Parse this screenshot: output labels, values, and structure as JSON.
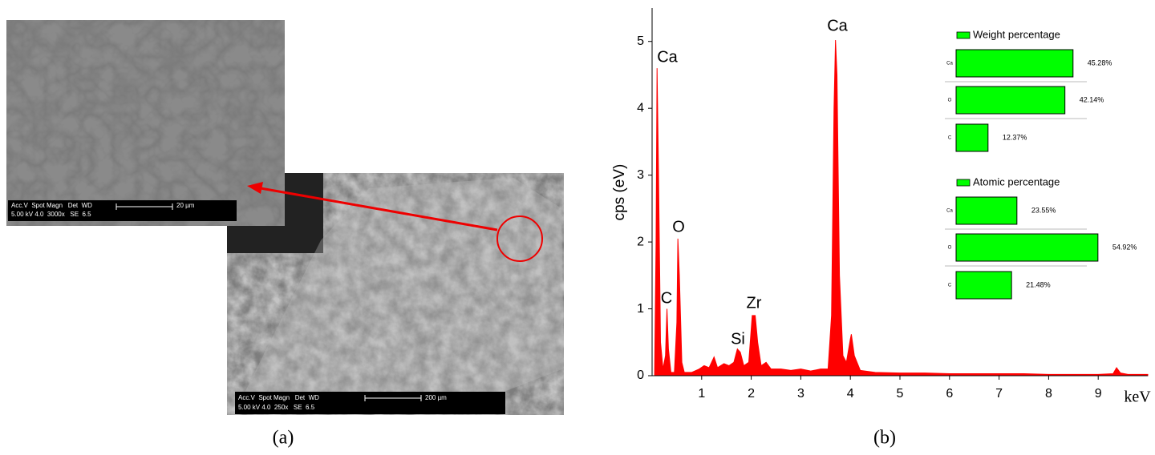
{
  "panel_labels": [
    "(a)",
    "(b)"
  ],
  "sem_images": [
    {
      "info_header": "Acc.V  Spot Magn   Det  WD",
      "info_values": "5.00 kV 4.0  3000x   SE  6.5",
      "scale_bar": "20 µm"
    },
    {
      "info_header": "Acc.V  Spot Magn   Det  WD",
      "info_values": "5.00 kV 4.0  250x   SE  6.5",
      "scale_bar": "200 µm"
    }
  ],
  "chart_data": [
    {
      "type": "area",
      "color": "#ff0000",
      "x": [
        0.05,
        0.08,
        0.1,
        0.13,
        0.17,
        0.22,
        0.27,
        0.3,
        0.33,
        0.38,
        0.45,
        0.5,
        0.52,
        0.55,
        0.6,
        0.65,
        0.8,
        0.95,
        1.05,
        1.15,
        1.25,
        1.32,
        1.45,
        1.55,
        1.65,
        1.72,
        1.78,
        1.85,
        1.95,
        2.02,
        2.08,
        2.13,
        2.2,
        2.3,
        2.4,
        2.6,
        2.8,
        3.0,
        3.2,
        3.4,
        3.55,
        3.62,
        3.67,
        3.7,
        3.73,
        3.78,
        3.85,
        3.92,
        4.0,
        4.02,
        4.08,
        4.2,
        4.5,
        5.0,
        5.5,
        6.0,
        6.5,
        7.0,
        7.5,
        8.0,
        8.5,
        9.0,
        9.3,
        9.37,
        9.45,
        9.6,
        10
      ],
      "values": [
        0,
        2,
        4.6,
        3,
        0.5,
        0.1,
        0.3,
        1.0,
        0.4,
        0.05,
        0.05,
        0.8,
        2.05,
        1.5,
        0.2,
        0.05,
        0.05,
        0.1,
        0.15,
        0.12,
        0.28,
        0.12,
        0.18,
        0.15,
        0.2,
        0.4,
        0.35,
        0.15,
        0.2,
        0.9,
        0.9,
        0.5,
        0.15,
        0.2,
        0.1,
        0.1,
        0.08,
        0.1,
        0.07,
        0.1,
        0.1,
        0.9,
        4.0,
        5.02,
        4.5,
        1.5,
        0.3,
        0.2,
        0.55,
        0.62,
        0.3,
        0.08,
        0.05,
        0.04,
        0.04,
        0.03,
        0.03,
        0.03,
        0.03,
        0.02,
        0.02,
        0.02,
        0.03,
        0.12,
        0.04,
        0.02,
        0.02
      ],
      "xlim": [
        0,
        10
      ],
      "xticks": [
        1,
        2,
        3,
        4,
        5,
        6,
        7,
        8,
        9
      ],
      "ylim": [
        0,
        5.5
      ],
      "yticks": [
        0,
        1,
        2,
        3,
        4,
        5
      ],
      "x_label": "keV",
      "y_label": "cps (eV)",
      "annotations": [
        "Ca",
        "C",
        "O",
        "Si",
        "Zr",
        "Ca"
      ]
    },
    {
      "type": "hbar",
      "categories": [
        "Ca",
        "O",
        "C"
      ],
      "series": [
        {
          "name": "Weight percentage",
          "color": "#00ff00",
          "values": [
            45.28,
            42.14,
            12.37
          ],
          "value_labels": [
            "45.28%",
            "42.14%",
            "12.37%"
          ]
        }
      ]
    },
    {
      "type": "hbar",
      "categories": [
        "Ca",
        "O",
        "C"
      ],
      "series": [
        {
          "name": "Atomic percentage",
          "color": "#00ff00",
          "values": [
            23.55,
            54.92,
            21.48
          ],
          "value_labels": [
            "23.55%",
            "54.92%",
            "21.48%"
          ]
        }
      ]
    }
  ]
}
